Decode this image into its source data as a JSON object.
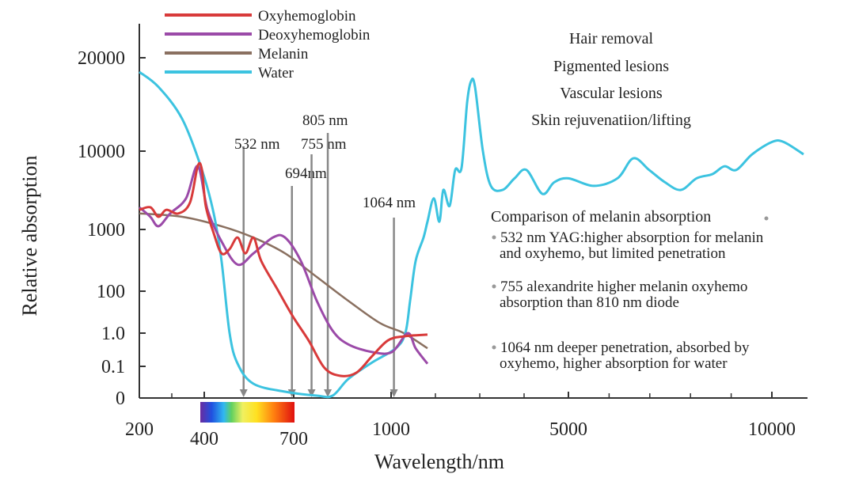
{
  "chart_data": {
    "type": "line",
    "xlabel": "Wavelength/nm",
    "ylabel": "Relative absorption",
    "x_ticks": [
      200,
      400,
      700,
      1000,
      5000,
      10000
    ],
    "y_ticks": [
      0,
      0.1,
      1.0,
      100,
      1000,
      10000,
      20000
    ],
    "y_tick_labels": [
      "0",
      "0.1",
      "1.0",
      "100",
      "1000",
      "10000",
      "20000"
    ],
    "x_tick_labels": [
      "200",
      "400",
      "700",
      "1000",
      "5000",
      "10000"
    ],
    "legend_placement": "top-left",
    "series": [
      {
        "name": "Oxyhemoglobin",
        "color": "#d83a3a",
        "x": [
          200,
          234,
          259,
          283,
          320,
          356,
          380,
          393,
          405,
          432,
          458,
          485,
          512,
          538,
          565,
          591,
          644,
          697,
          746,
          795,
          844,
          893,
          941,
          990,
          1286,
          1821
        ],
        "y": [
          1780,
          1920,
          1450,
          1780,
          1600,
          2200,
          6450,
          5750,
          2000,
          860,
          410,
          480,
          740,
          410,
          740,
          309,
          110,
          6.3,
          0.6,
          0.095,
          0.07,
          0.08,
          0.2,
          0.6,
          0.8,
          0.9
        ]
      },
      {
        "name": "Deoxyhemoglobin",
        "color": "#9b4aa8",
        "x": [
          200,
          234,
          259,
          295,
          344,
          380,
          411,
          458,
          512,
          565,
          630,
          671,
          722,
          771,
          820,
          868,
          941,
          1018,
          1375,
          1554,
          1821
        ],
        "y": [
          1920,
          1450,
          1100,
          1600,
          2500,
          6450,
          1780,
          640,
          270,
          410,
          740,
          740,
          309,
          35,
          1.3,
          0.46,
          0.27,
          0.27,
          1.0,
          0.35,
          0.12
        ]
      },
      {
        "name": "Melanin",
        "color": "#8a7060",
        "x": [
          200,
          332,
          458,
          565,
          671,
          771,
          868,
          966,
          1286,
          1821
        ],
        "y": [
          1600,
          1450,
          1100,
          740,
          410,
          170,
          35,
          3,
          1.0,
          0.35
        ]
      },
      {
        "name": "Water",
        "color": "#3cc3e0",
        "x": [
          200,
          259,
          332,
          393,
          432,
          458,
          485,
          512,
          565,
          671,
          771,
          820,
          868,
          941,
          1107,
          1321,
          1429,
          1554,
          1732,
          1821,
          1964,
          2089,
          2179,
          2321,
          2446,
          2589,
          2714,
          2804,
          2893,
          3071,
          3250,
          3518,
          3786,
          4054,
          4411,
          4679,
          5000,
          5623,
          6206,
          6595,
          6984,
          7374,
          7763,
          8152,
          8541,
          8833,
          9125,
          9514,
          10000,
          10292,
          10778
        ],
        "y": [
          18000,
          16100,
          12700,
          5750,
          1580,
          309,
          1.0,
          0.12,
          0.045,
          0.02,
          0.0075,
          0.0075,
          0.06,
          0.13,
          0.35,
          1.0,
          35,
          309,
          740,
          1260,
          2500,
          1260,
          3200,
          2000,
          5750,
          6100,
          14300,
          16800,
          16100,
          10000,
          3600,
          3200,
          4500,
          5750,
          2850,
          4000,
          4500,
          3600,
          4500,
          8100,
          5750,
          4000,
          3200,
          4500,
          5100,
          6400,
          5750,
          9100,
          10700,
          10700,
          9100
        ]
      }
    ],
    "markers": [
      {
        "label": "532 nm",
        "x": 532
      },
      {
        "label": "694nm",
        "x": 694
      },
      {
        "label": "755 nm",
        "x": 755
      },
      {
        "label": "805 nm",
        "x": 805
      },
      {
        "label": "1064 nm",
        "x": 1064
      }
    ],
    "visible_spectrum": {
      "from": 400,
      "to": 700
    },
    "applications": [
      "Hair removal",
      "Pigmented lesions",
      "Vascular lesions",
      "Skin rejuvenatiion/lifting"
    ],
    "comparison": {
      "title": "Comparison of melanin absorption",
      "items": [
        [
          "532 nm YAG:higher absorption for melanin",
          "and oxyhemo, but limited penetration"
        ],
        [
          "755 alexandrite higher melanin oxyhemo",
          "absorption than 810 nm diode"
        ],
        [
          "1064 nm deeper penetration, absorbed by",
          "oxyhemo, higher absorption for water"
        ]
      ]
    }
  }
}
